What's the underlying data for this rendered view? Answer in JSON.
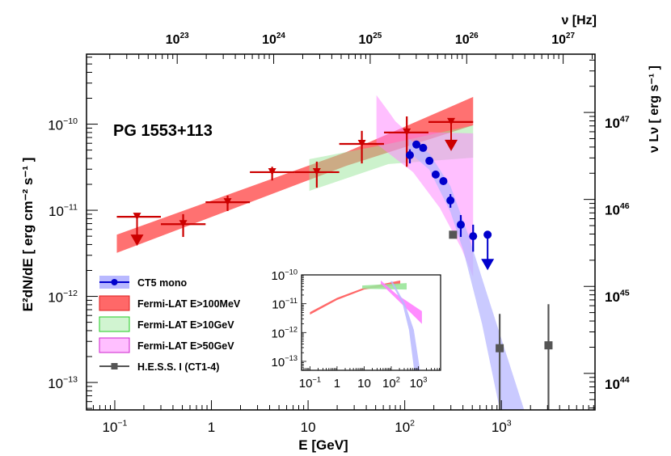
{
  "chart_data": {
    "type": "scatter",
    "title": "PG 1553+113",
    "xlabel": "E [GeV]",
    "ylabel": "E²dN/dE [ erg cm⁻² s⁻¹ ]",
    "top_xlabel": "ν [Hz]",
    "right_ylabel": "ν Lν [ erg s⁻¹ ]",
    "xscale": "log",
    "yscale": "log",
    "xlim": [
      0.051,
      9300
    ],
    "ylim": [
      4.8e-14,
      6.5e-10
    ],
    "x_ticks": [
      {
        "v": 0.1,
        "base": "10",
        "exp": "−1"
      },
      {
        "v": 1,
        "base": "1",
        "exp": ""
      },
      {
        "v": 10,
        "base": "10",
        "exp": ""
      },
      {
        "v": 100,
        "base": "10",
        "exp": "2"
      },
      {
        "v": 1000,
        "base": "10",
        "exp": "3"
      }
    ],
    "y_ticks": [
      {
        "v": 1e-10,
        "base": "10",
        "exp": "−10"
      },
      {
        "v": 1e-11,
        "base": "10",
        "exp": "−11"
      },
      {
        "v": 1e-12,
        "base": "10",
        "exp": "−12"
      },
      {
        "v": 1e-13,
        "base": "10",
        "exp": "−13"
      }
    ],
    "top_axis": {
      "log_range": [
        22.06,
        27.33
      ],
      "ticks": [
        {
          "v": 23,
          "base": "10",
          "exp": "23"
        },
        {
          "v": 24,
          "base": "10",
          "exp": "24"
        },
        {
          "v": 25,
          "base": "10",
          "exp": "25"
        },
        {
          "v": 26,
          "base": "10",
          "exp": "26"
        },
        {
          "v": 27,
          "base": "10",
          "exp": "27"
        }
      ]
    },
    "right_axis": {
      "log_range": [
        43.58,
        47.67
      ],
      "ticks": [
        {
          "v": 47,
          "base": "10",
          "exp": "47"
        },
        {
          "v": 46,
          "base": "10",
          "exp": "46"
        },
        {
          "v": 45,
          "base": "10",
          "exp": "45"
        },
        {
          "v": 44,
          "base": "10",
          "exp": "44"
        }
      ]
    },
    "colors": {
      "fermi_points": "#cc0000",
      "fermi100": "#ff4d4d",
      "fermi10": "#99e699",
      "fermi50": "#ff80ff",
      "ct5": "#0000cc",
      "ct5_band": "#b8b8ff",
      "hess": "#555555",
      "green_edge": "#22cc22",
      "magenta_edge": "#cc22cc",
      "red_edge": "#dd2222"
    },
    "bands": [
      {
        "name": "fermi100",
        "opacity": 0.8,
        "upper": [
          [
            0.105,
            5.2e-12
          ],
          [
            25,
            4.75e-11
          ],
          [
            510,
            2.07e-10
          ]
        ],
        "lower": [
          [
            0.105,
            3.2e-12
          ],
          [
            25,
            3.29e-11
          ],
          [
            510,
            9.7e-11
          ]
        ]
      },
      {
        "name": "fermi10",
        "opacity": 0.5,
        "upper": [
          [
            10.3,
            3.92e-11
          ],
          [
            68,
            5.9e-11
          ],
          [
            510,
            9.7e-11
          ]
        ],
        "lower": [
          [
            10.3,
            1.68e-11
          ],
          [
            68,
            3.44e-11
          ],
          [
            510,
            4.08e-11
          ]
        ]
      },
      {
        "name": "fermi50",
        "opacity": 0.5,
        "upper": [
          [
            51,
            2.17e-10
          ],
          [
            68,
            1.4e-10
          ],
          [
            80,
            1.08e-10
          ],
          [
            105,
            8.2e-11
          ],
          [
            510,
            7.8e-11
          ]
        ],
        "lower": [
          [
            51,
            5.9e-11
          ],
          [
            122,
            2.77e-11
          ],
          [
            230,
            1.07e-11
          ],
          [
            386,
            3.6e-12
          ],
          [
            500,
            1.77e-12
          ],
          [
            510,
            1.7e-12
          ]
        ]
      },
      {
        "name": "ct5_band",
        "opacity": 0.75,
        "upper": [
          [
            111,
            6.7e-11
          ],
          [
            180,
            4.56e-11
          ],
          [
            297,
            1.91e-11
          ],
          [
            454,
            5.2e-12
          ],
          [
            695,
            1.15e-12
          ],
          [
            1720,
            4.8e-14
          ]
        ],
        "lower": [
          [
            111,
            4.75e-11
          ],
          [
            180,
            2.95e-11
          ],
          [
            297,
            9.6e-12
          ],
          [
            404,
            3.39e-12
          ],
          [
            630,
            4.8e-13
          ],
          [
            964,
            4.8e-14
          ]
        ]
      }
    ],
    "series": [
      {
        "name": "Fermi-LAT",
        "marker": "triangle-down",
        "points": [
          {
            "e": 0.17,
            "e_lo": 0.105,
            "e_hi": 0.3,
            "f": 8.4e-12,
            "ul": true
          },
          {
            "e": 0.51,
            "e_lo": 0.3,
            "e_hi": 0.87,
            "f": 6.9e-12,
            "f_lo": 4.9e-12,
            "f_hi": 9e-12
          },
          {
            "e": 1.47,
            "e_lo": 0.87,
            "e_hi": 2.5,
            "f": 1.24e-11,
            "f_lo": 9.8e-12,
            "f_hi": 1.48e-11
          },
          {
            "e": 4.25,
            "e_lo": 2.5,
            "e_hi": 7.3,
            "f": 2.77e-11,
            "f_lo": 2.22e-11,
            "f_hi": 3.2e-11
          },
          {
            "e": 12.3,
            "e_lo": 7.3,
            "e_hi": 21,
            "f": 2.77e-11,
            "f_lo": 1.83e-11,
            "f_hi": 3.67e-11
          },
          {
            "e": 36,
            "e_lo": 21,
            "e_hi": 61,
            "f": 5.9e-11,
            "f_lo": 3.5e-11,
            "f_hi": 8.36e-11
          },
          {
            "e": 105,
            "e_lo": 61,
            "e_hi": 176,
            "f": 8e-11,
            "f_lo": 3.2e-11,
            "f_hi": 1.23e-10
          },
          {
            "e": 302,
            "e_lo": 176,
            "e_hi": 510,
            "f": 1.06e-10,
            "ul": true
          }
        ]
      },
      {
        "name": "CT5 mono",
        "marker": "circle",
        "points": [
          {
            "e": 113,
            "f": 4.37e-11,
            "f_lo": 3.5e-11,
            "f_hi": 5.1e-11
          },
          {
            "e": 132,
            "f": 5.8e-11
          },
          {
            "e": 155,
            "f": 5.3e-11
          },
          {
            "e": 180,
            "f": 3.75e-11
          },
          {
            "e": 209,
            "f": 2.6e-11
          },
          {
            "e": 251,
            "f": 2.18e-11
          },
          {
            "e": 297,
            "f": 1.3e-11,
            "f_lo": 1.07e-11,
            "f_hi": 1.54e-11
          },
          {
            "e": 380,
            "f": 6.8e-12,
            "f_lo": 4.9e-12,
            "f_hi": 8.8e-12
          },
          {
            "e": 510,
            "f": 5e-12,
            "f_lo": 3.3e-12,
            "f_hi": 6.8e-12
          },
          {
            "e": 720,
            "f": 5.2e-12,
            "ul": true
          }
        ]
      },
      {
        "name": "H.E.S.S. I (CT1-4)",
        "marker": "square",
        "points": [
          {
            "e": 316,
            "f": 5.2e-12
          },
          {
            "e": 960,
            "f": 2.5e-13,
            "f_lo": 1e-15,
            "f_hi": 6.25e-13
          },
          {
            "e": 3070,
            "f": 2.7e-13,
            "f_lo": 1e-15,
            "f_hi": 8.1e-13
          }
        ]
      }
    ],
    "legend": {
      "placement": "bottom-left",
      "entries": [
        {
          "label": "CT5 mono",
          "style": "ct5"
        },
        {
          "label": "Fermi-LAT E>100MeV",
          "style": "fermi100"
        },
        {
          "label": "Fermi-LAT E>10GeV",
          "style": "fermi10"
        },
        {
          "label": "Fermi-LAT E>50GeV",
          "style": "fermi50"
        },
        {
          "label": "H.E.S.S. I (CT1-4)",
          "style": "hess"
        }
      ]
    },
    "inset": {
      "xlim": [
        0.049,
        6600
      ],
      "ylim": [
        4.9e-14,
        1e-10
      ],
      "x_ticks": [
        {
          "v": 0.1,
          "base": "10",
          "exp": "−1"
        },
        {
          "v": 1,
          "base": "1",
          "exp": ""
        },
        {
          "v": 10,
          "base": "10",
          "exp": ""
        },
        {
          "v": 100,
          "base": "10",
          "exp": "2"
        },
        {
          "v": 1000,
          "base": "10",
          "exp": "3"
        }
      ],
      "y_ticks": [
        {
          "v": 1e-10,
          "base": "10",
          "exp": "−10"
        },
        {
          "v": 1e-11,
          "base": "10",
          "exp": "−11"
        },
        {
          "v": 1e-12,
          "base": "10",
          "exp": "−12"
        },
        {
          "v": 1e-13,
          "base": "10",
          "exp": "−13"
        }
      ],
      "bands": [
        {
          "name": "fermi100",
          "opacity": 0.85,
          "upper": [
            [
              0.1,
              5.1e-12
            ],
            [
              1,
              1.6e-11
            ],
            [
              10,
              3.6e-11
            ],
            [
              214,
              6.4e-11
            ]
          ],
          "lower": [
            [
              0.1,
              4.2e-12
            ],
            [
              1,
              1.35e-11
            ],
            [
              10,
              3.1e-11
            ],
            [
              214,
              4.6e-11
            ]
          ]
        },
        {
          "name": "fermi10",
          "opacity": 0.9,
          "upper": [
            [
              8.5,
              4.3e-11
            ],
            [
              370,
              5.2e-11
            ]
          ],
          "lower": [
            [
              8.5,
              3.3e-11
            ],
            [
              370,
              3.1e-11
            ]
          ]
        },
        {
          "name": "fermi50",
          "opacity": 0.9,
          "upper": [
            [
              41,
              6.4e-11
            ],
            [
              150,
              2.2e-11
            ],
            [
              1350,
              5.5e-12
            ]
          ],
          "lower": [
            [
              41,
              5e-11
            ],
            [
              186,
              1.26e-11
            ],
            [
              1350,
              2e-12
            ]
          ]
        },
        {
          "name": "ct5_band",
          "opacity": 0.85,
          "upper": [
            [
              110,
              6e-11
            ],
            [
              320,
              1e-11
            ],
            [
              680,
              1.24e-12
            ],
            [
              1150,
              4.9e-14
            ]
          ],
          "lower": [
            [
              93,
              6e-11
            ],
            [
              260,
              1e-11
            ],
            [
              450,
              1.24e-12
            ],
            [
              700,
              4.9e-14
            ]
          ]
        }
      ]
    }
  }
}
